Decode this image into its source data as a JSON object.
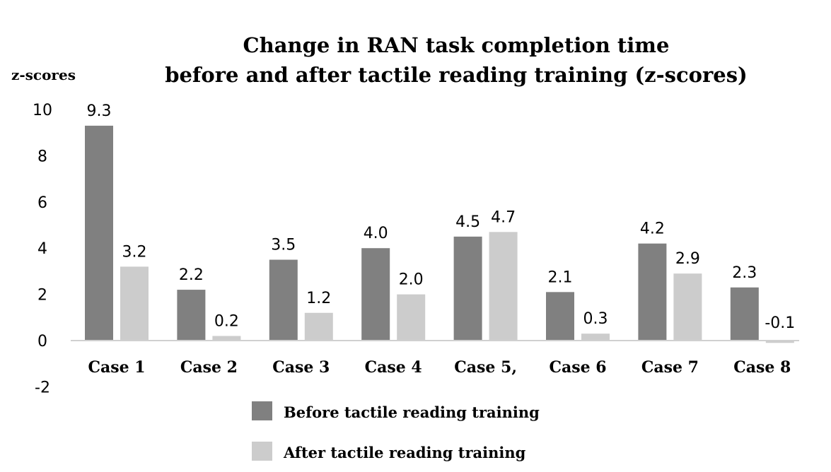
{
  "chart_data": {
    "type": "bar",
    "title_lines": [
      "Change in RAN task completion time",
      "before and after tactile reading training (z-scores)"
    ],
    "ylabel": "z-scores",
    "xlabel": "",
    "categories": [
      "Case 1",
      "Case 2",
      "Case 3",
      "Case 4",
      "Case 5,",
      "Case 6",
      "Case 7",
      "Case 8"
    ],
    "series": [
      {
        "name": "Before tactile reading training",
        "color": "#808080",
        "values": [
          9.3,
          2.2,
          3.5,
          4.0,
          4.5,
          2.1,
          4.2,
          2.3
        ],
        "labels": [
          "9.3",
          "2.2",
          "3.5",
          "4.0",
          "4.5",
          "2.1",
          "4.2",
          "2.3"
        ]
      },
      {
        "name": "After tactile reading training",
        "color": "#cccccc",
        "values": [
          3.2,
          0.2,
          1.2,
          2.0,
          4.7,
          0.3,
          2.9,
          -0.1
        ],
        "labels": [
          "3.2",
          "0.2",
          "1.2",
          "2.0",
          "4.7",
          "0.3",
          "2.9",
          "-0.1"
        ]
      }
    ],
    "ylim": [
      -2,
      10
    ],
    "yticks": [
      "-2",
      "0",
      "2",
      "4",
      "6",
      "8",
      "10"
    ],
    "grid": false,
    "legend_position": "bottom-center"
  }
}
